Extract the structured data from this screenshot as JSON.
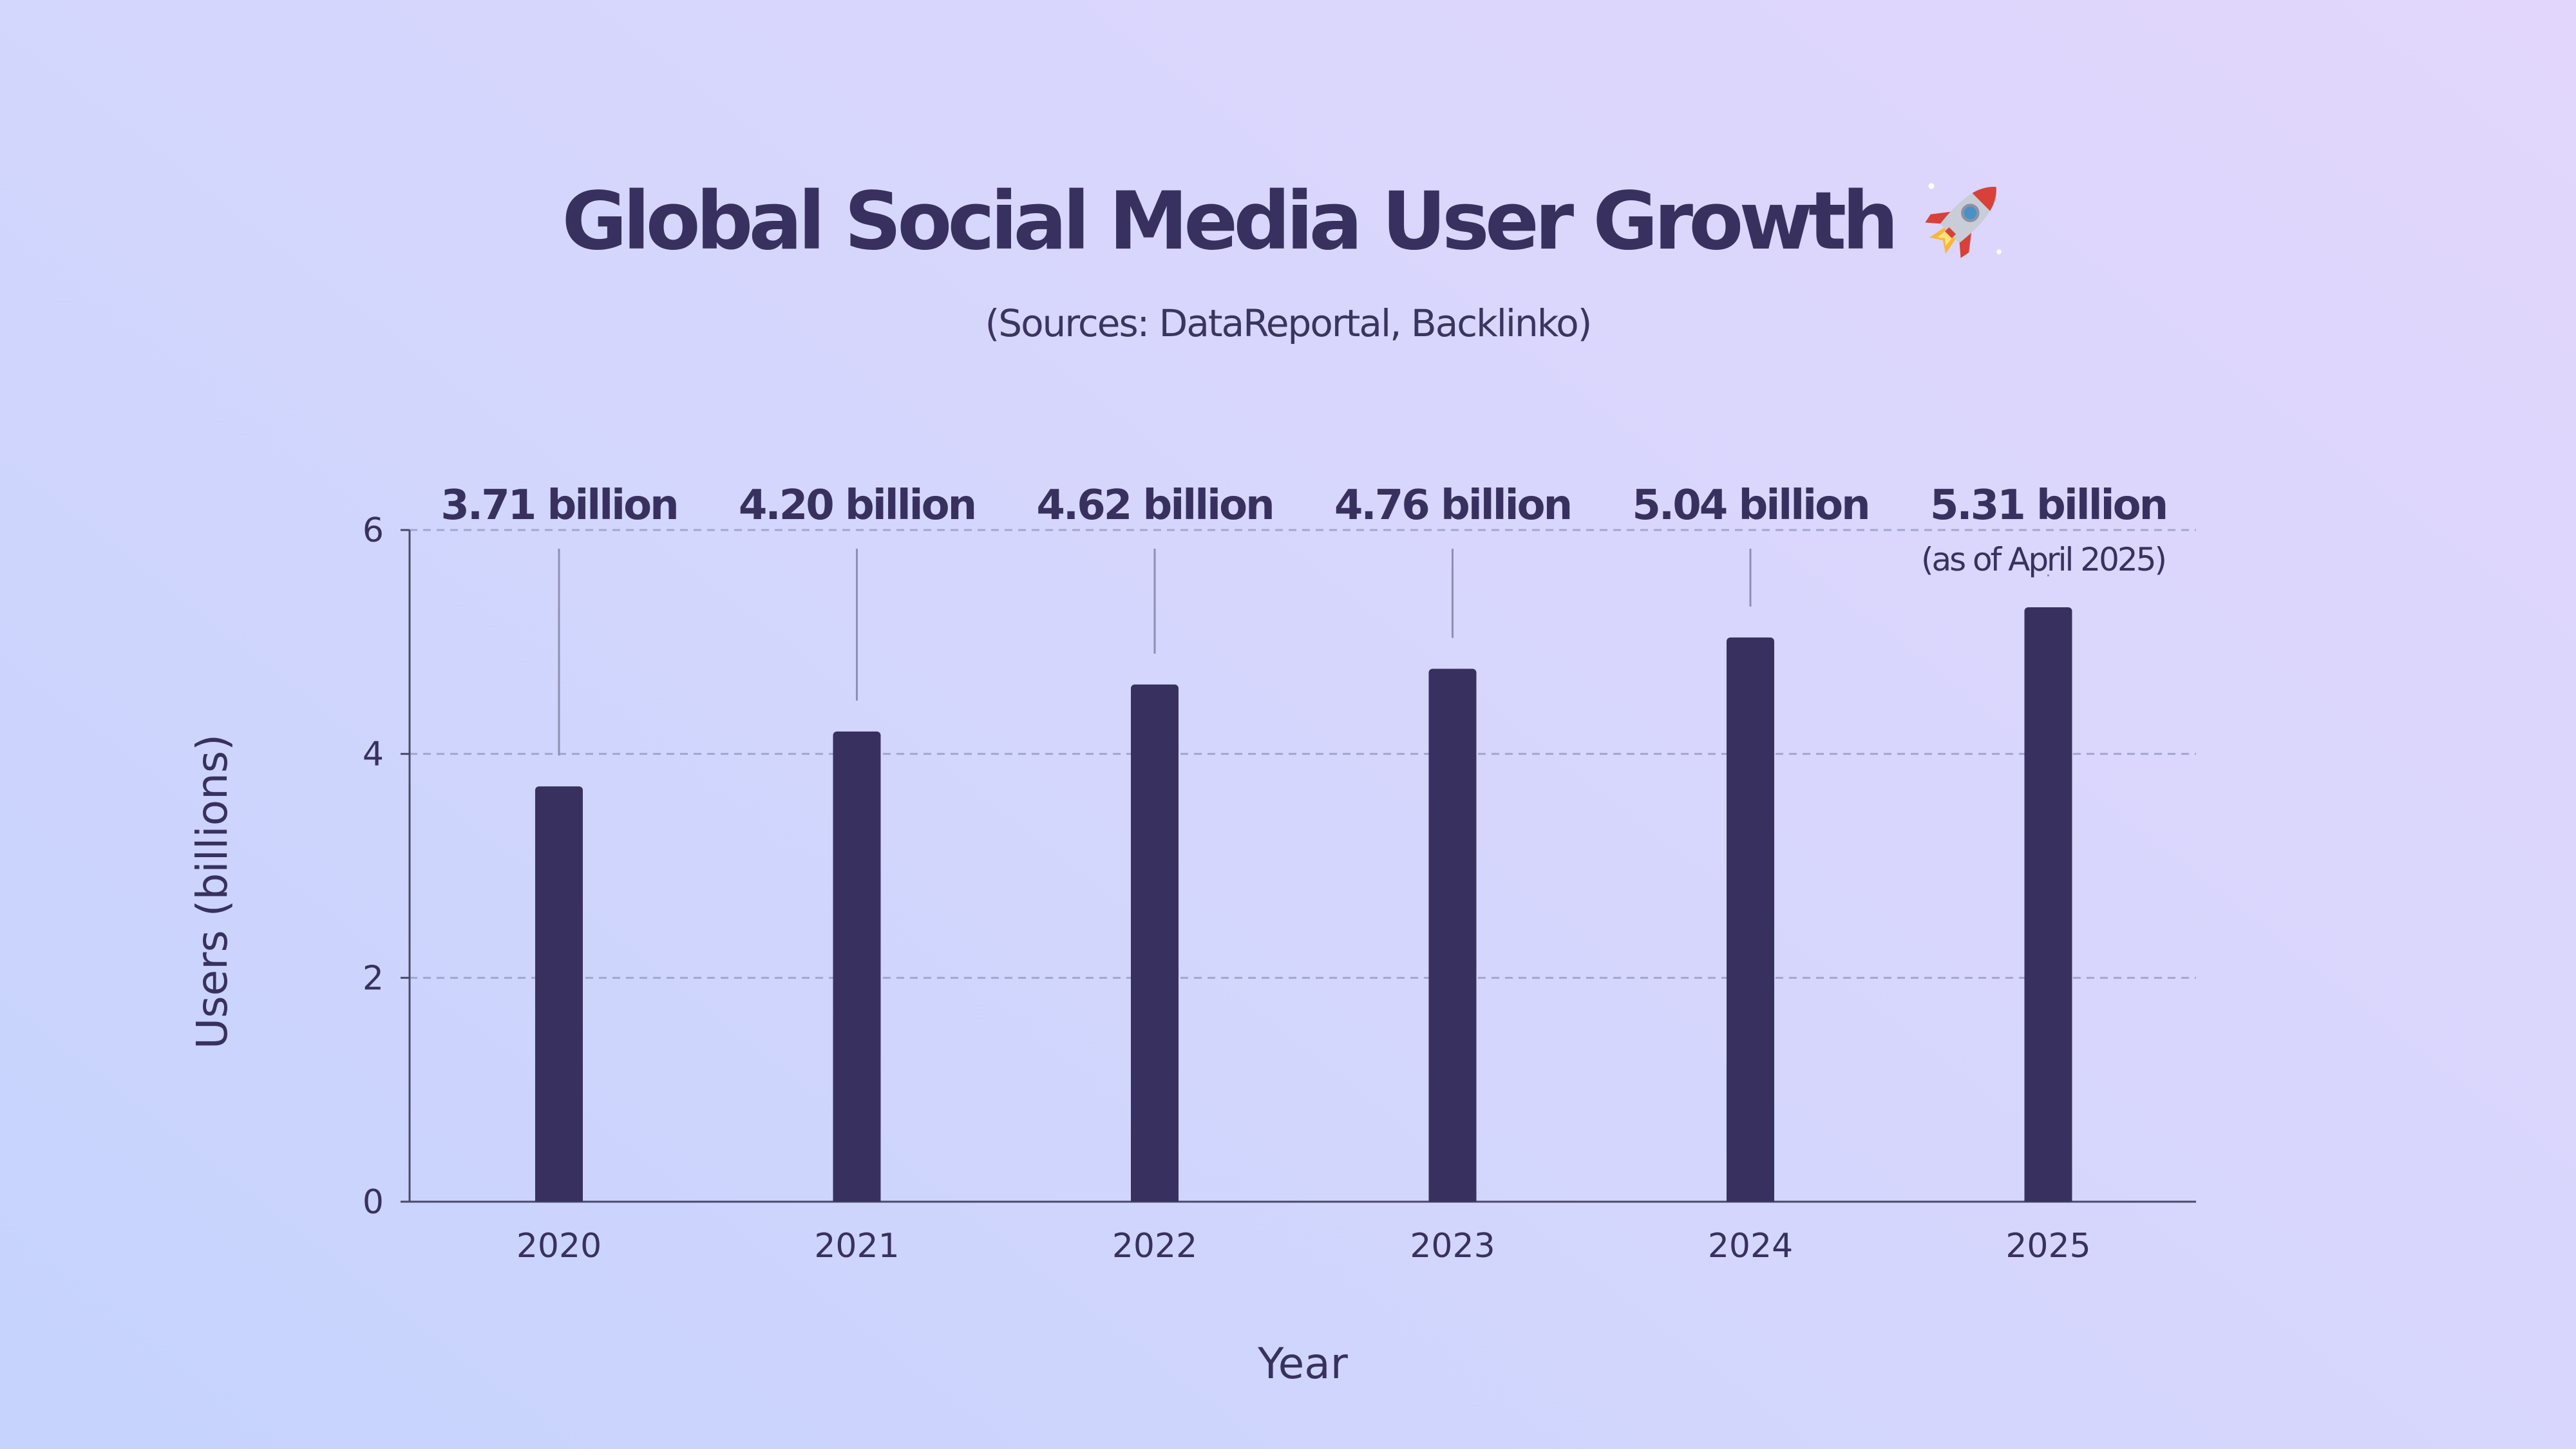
{
  "chart_data": {
    "type": "bar",
    "title": "Global Social Media User Growth",
    "title_icon": "rocket-icon",
    "subtitle": "(Sources: DataReportal, Backlinko)",
    "xlabel": "Year",
    "ylabel": "Users (billions)",
    "categories": [
      "2020",
      "2021",
      "2022",
      "2023",
      "2024",
      "2025"
    ],
    "values": [
      3.71,
      4.2,
      4.62,
      4.76,
      5.04,
      5.31
    ],
    "data_labels": [
      "3.71 billion",
      "4.20 billion",
      "4.62 billion",
      "4.76 billion",
      "5.04 billion",
      "5.31 billion"
    ],
    "annotations": [
      {
        "category": "2025",
        "text": "(as of April 2025)"
      }
    ],
    "ylim": [
      0,
      6
    ],
    "yticks": [
      "0",
      "2",
      "4",
      "6"
    ],
    "grid": true,
    "colors": {
      "bar": "#383160",
      "text": "#383160",
      "axis": "#4a4a66",
      "grid": "#a3a6cf",
      "leader": "#8e8fb3"
    }
  }
}
